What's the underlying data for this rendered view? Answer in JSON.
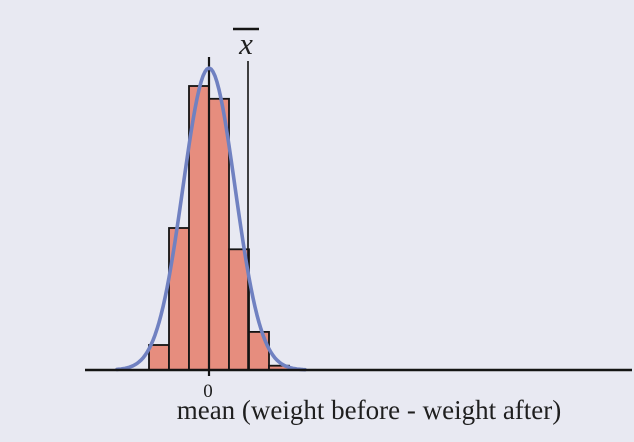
{
  "figure": {
    "background": "#e8e9f2",
    "text_color": "#1f1f1f"
  },
  "chart_data": {
    "type": "histogram",
    "subtype": "sampling-distribution-sketch-with-normal-overlay",
    "title": "",
    "xlabel": "mean (weight before - weight after)",
    "ylabel": "",
    "grid": false,
    "legend": false,
    "x_ticks": [
      {
        "value": 0,
        "label": "0"
      }
    ],
    "bin_edges": [
      -3,
      -2,
      -1,
      0,
      1,
      2,
      3,
      4
    ],
    "bar_heights_relative": [
      0.088,
      0.5,
      1.0,
      0.955,
      0.425,
      0.134,
      0.015
    ],
    "bars": {
      "fill": "#e68d7e",
      "stroke": "#141414"
    },
    "overlay_curve": {
      "shape": "normal",
      "mean": 0,
      "sigma": 1.3,
      "peak_relative": 1.063,
      "color": "#7081c1"
    },
    "zero_line": {
      "x": 0
    },
    "xbar_line": {
      "x": 1.95,
      "label": "x",
      "label_has_overline": true
    },
    "axis_color": "#141414"
  }
}
